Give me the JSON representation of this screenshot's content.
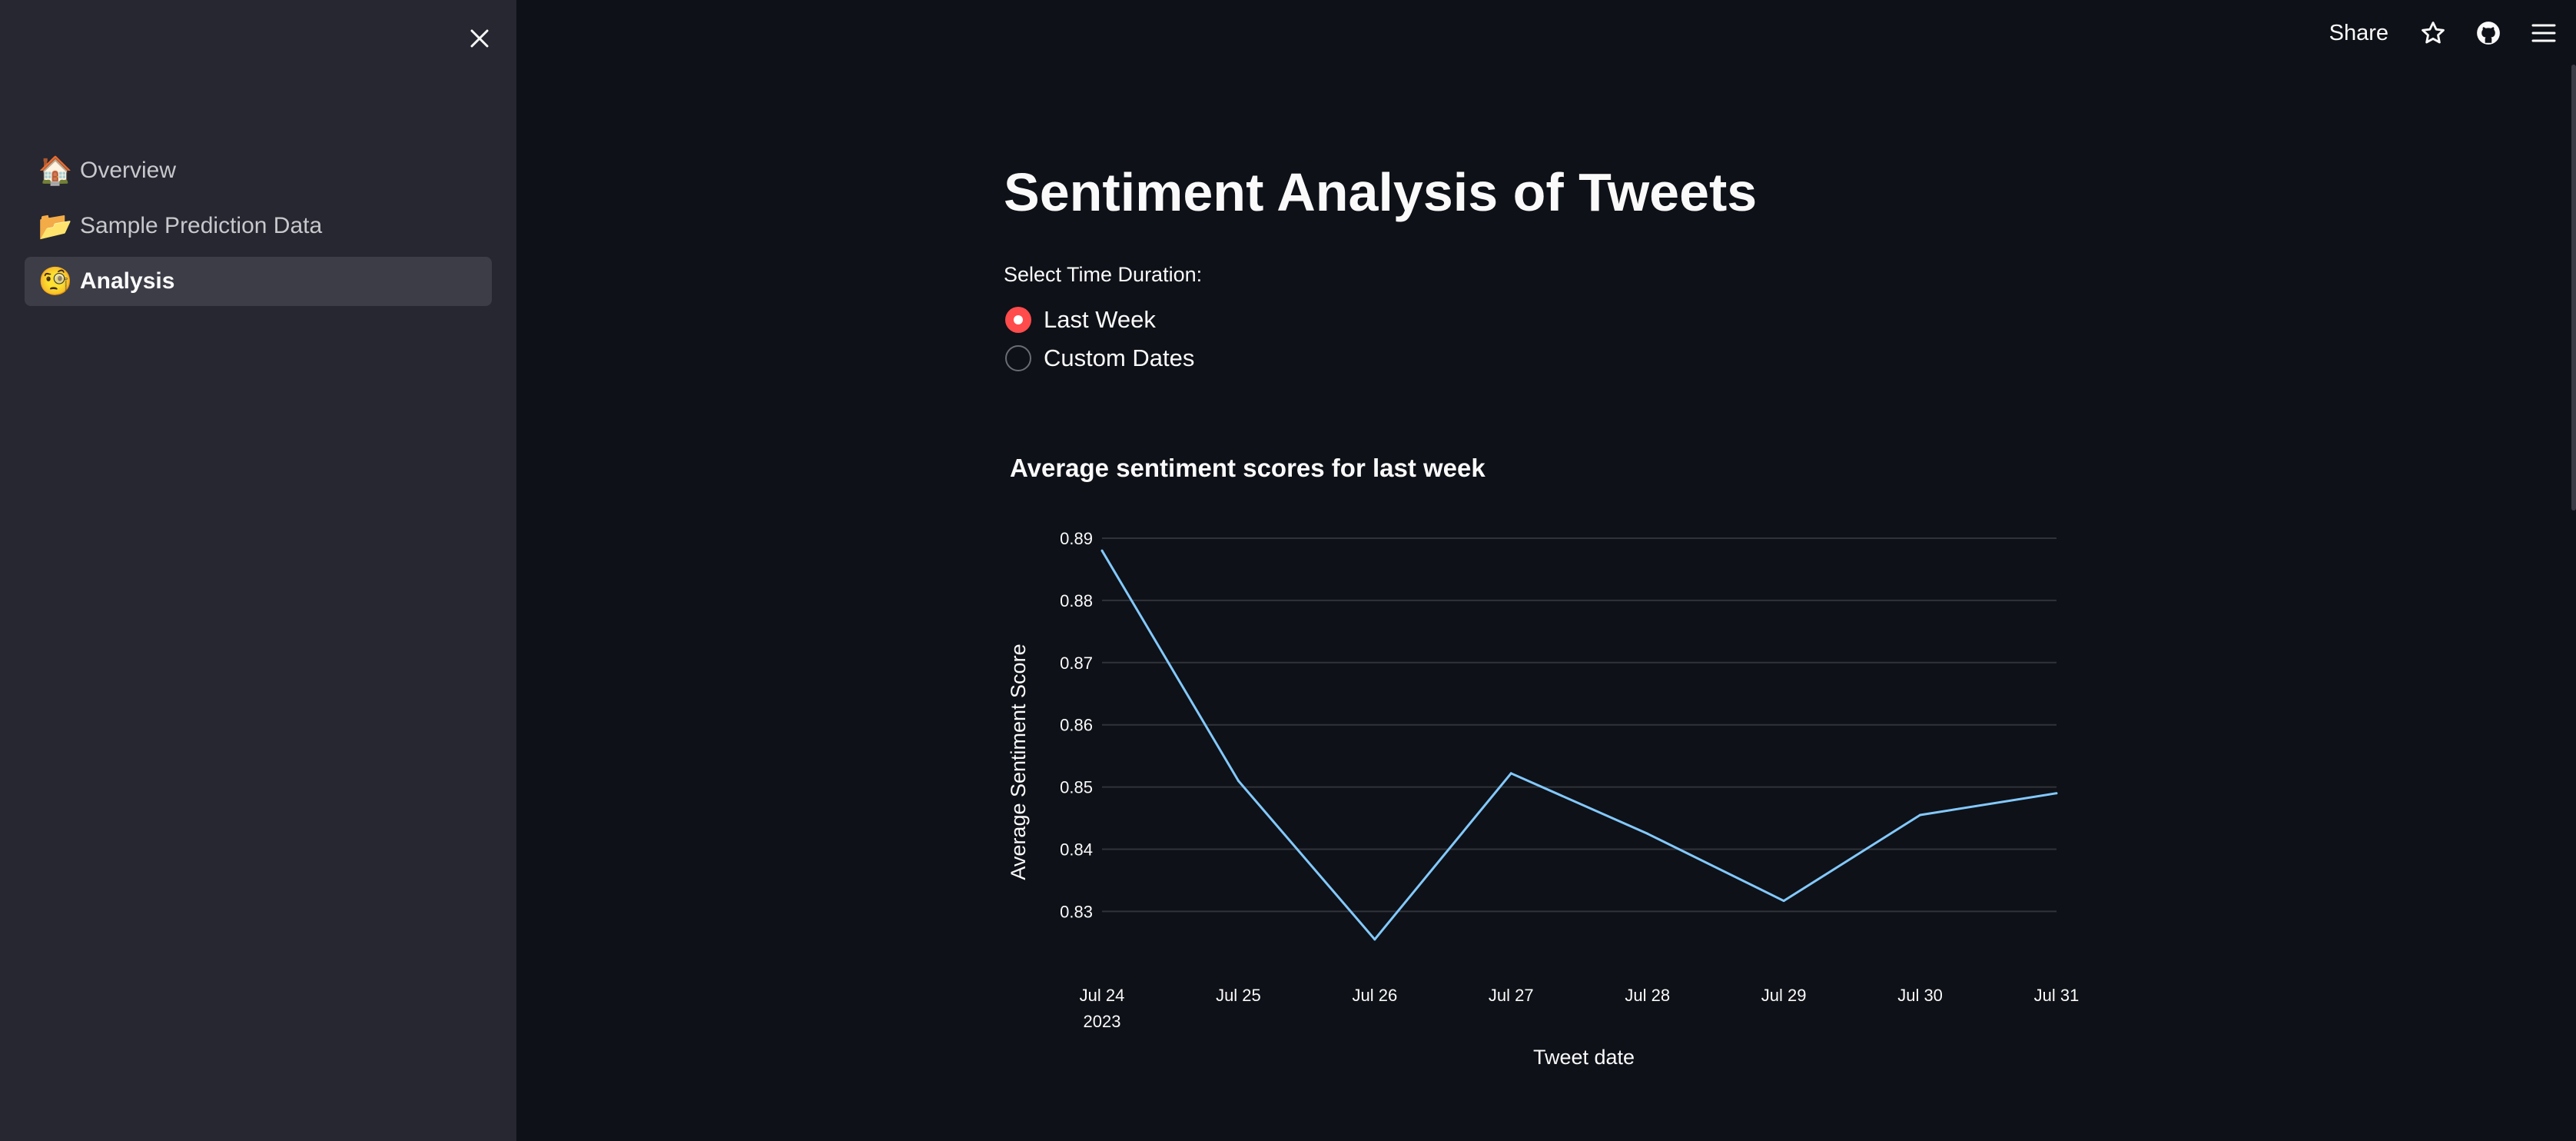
{
  "sidebar": {
    "items": [
      {
        "emoji": "🏠",
        "label": "Overview",
        "active": false
      },
      {
        "emoji": "📂",
        "label": "Sample Prediction Data",
        "active": false
      },
      {
        "emoji": "🧐",
        "label": "Analysis",
        "active": true
      }
    ]
  },
  "header": {
    "share_label": "Share"
  },
  "main": {
    "title": "Sentiment Analysis of Tweets",
    "radio_label": "Select Time Duration:",
    "radio_options": [
      {
        "label": "Last Week",
        "selected": true
      },
      {
        "label": "Custom Dates",
        "selected": false
      }
    ],
    "chart_title": "Average sentiment scores for last week"
  },
  "colors": {
    "accent": "#ff4b4b",
    "line": "#83c9ff",
    "background": "#0e1117",
    "sidebar": "#262730"
  },
  "chart_data": {
    "type": "line",
    "title": "Average sentiment scores for last week",
    "xlabel": "Tweet date",
    "ylabel": "Average Sentiment Score",
    "x": [
      "Jul 24",
      "Jul 25",
      "Jul 26",
      "Jul 27",
      "Jul 28",
      "Jul 29",
      "Jul 30",
      "Jul 31"
    ],
    "x_year_label": "2023",
    "values": [
      0.888,
      0.851,
      0.8255,
      0.8522,
      0.8425,
      0.8317,
      0.8455,
      0.849
    ],
    "yticks": [
      0.83,
      0.84,
      0.85,
      0.86,
      0.87,
      0.88,
      0.89
    ],
    "ylim": [
      0.8235,
      0.89
    ],
    "grid": true
  }
}
